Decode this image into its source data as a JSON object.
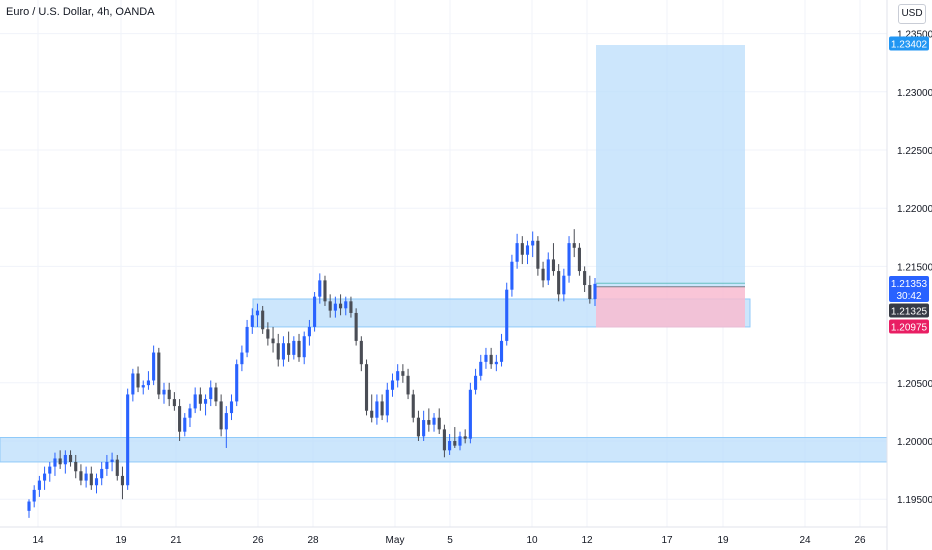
{
  "chart_data": {
    "type": "candlestick",
    "title": "Euro / U.S. Dollar, 4h, OANDA",
    "currency": "USD",
    "y_ticks": [
      "1.23500",
      "1.23000",
      "1.22500",
      "1.22000",
      "1.21500",
      "1.20500",
      "1.20000",
      "1.19500"
    ],
    "x_ticks": [
      "14",
      "19",
      "21",
      "26",
      "28",
      "May",
      "5",
      "10",
      "12",
      "17",
      "19",
      "24",
      "26"
    ],
    "price_labels": {
      "target": "1.23402",
      "current": "1.21353",
      "countdown": "30:42",
      "entry": "1.21325",
      "stop": "1.20975"
    },
    "colors": {
      "up": "#2962ff",
      "down": "#4a4d55",
      "zone": "#bbdefb",
      "zone_border": "#90caf9",
      "profit": "#bbdefb",
      "loss": "#f8bbd0",
      "target_label": "#2196f3",
      "current_label": "#2962ff",
      "entry_label": "#363a45",
      "stop_label": "#e91e63"
    },
    "zones": [
      {
        "from": 1.2098,
        "to": 1.2122
      },
      {
        "from": 1.1982,
        "to": 1.2003
      }
    ],
    "position": {
      "entry": 1.21325,
      "target": 1.23402,
      "stop": 1.20975
    },
    "candles": [
      [
        1.194,
        1.195,
        1.1934,
        1.1948
      ],
      [
        1.1948,
        1.1962,
        1.1943,
        1.1958
      ],
      [
        1.1958,
        1.197,
        1.1952,
        1.1966
      ],
      [
        1.1966,
        1.1978,
        1.1958,
        1.1972
      ],
      [
        1.1972,
        1.1982,
        1.1965,
        1.1978
      ],
      [
        1.1978,
        1.199,
        1.197,
        1.1985
      ],
      [
        1.1985,
        1.1992,
        1.1976,
        1.198
      ],
      [
        1.198,
        1.1992,
        1.1972,
        1.1988
      ],
      [
        1.1988,
        1.1992,
        1.1978,
        1.1982
      ],
      [
        1.1982,
        1.1988,
        1.1968,
        1.1974
      ],
      [
        1.1974,
        1.198,
        1.1962,
        1.1966
      ],
      [
        1.1966,
        1.1978,
        1.196,
        1.1972
      ],
      [
        1.1972,
        1.1978,
        1.1958,
        1.1962
      ],
      [
        1.1962,
        1.1972,
        1.1955,
        1.1968
      ],
      [
        1.1968,
        1.1982,
        1.1962,
        1.1976
      ],
      [
        1.1976,
        1.1988,
        1.197,
        1.1982
      ],
      [
        1.1982,
        1.199,
        1.1974,
        1.1984
      ],
      [
        1.1984,
        1.1988,
        1.1966,
        1.197
      ],
      [
        1.197,
        1.1978,
        1.195,
        1.1962
      ],
      [
        1.1962,
        1.2045,
        1.1958,
        1.204
      ],
      [
        1.204,
        1.2062,
        1.2034,
        1.2058
      ],
      [
        1.2058,
        1.2064,
        1.2042,
        1.2046
      ],
      [
        1.2046,
        1.2052,
        1.204,
        1.2048
      ],
      [
        1.2048,
        1.206,
        1.2044,
        1.2052
      ],
      [
        1.2052,
        1.2082,
        1.2048,
        1.2076
      ],
      [
        1.2076,
        1.208,
        1.2036,
        1.204
      ],
      [
        1.204,
        1.205,
        1.2032,
        1.2044
      ],
      [
        1.2044,
        1.205,
        1.203,
        1.2036
      ],
      [
        1.2036,
        1.2042,
        1.2026,
        1.203
      ],
      [
        1.203,
        1.2036,
        1.2,
        1.2008
      ],
      [
        1.2008,
        1.2024,
        1.2004,
        1.202
      ],
      [
        1.202,
        1.2032,
        1.2012,
        1.2028
      ],
      [
        1.2028,
        1.2046,
        1.2024,
        1.204
      ],
      [
        1.204,
        1.2046,
        1.2026,
        1.2032
      ],
      [
        1.2032,
        1.204,
        1.2022,
        1.2036
      ],
      [
        1.2036,
        1.2052,
        1.203,
        1.2046
      ],
      [
        1.2046,
        1.205,
        1.203,
        1.2034
      ],
      [
        1.2034,
        1.204,
        1.2004,
        1.201
      ],
      [
        1.201,
        1.203,
        1.1994,
        1.2024
      ],
      [
        1.2024,
        1.204,
        1.2018,
        1.2034
      ],
      [
        1.2034,
        1.207,
        1.203,
        1.2066
      ],
      [
        1.2066,
        1.2082,
        1.206,
        1.2076
      ],
      [
        1.2076,
        1.2104,
        1.2072,
        1.2098
      ],
      [
        1.2098,
        1.2114,
        1.2092,
        1.2108
      ],
      [
        1.2108,
        1.2118,
        1.2098,
        1.2112
      ],
      [
        1.2112,
        1.2116,
        1.2092,
        1.2096
      ],
      [
        1.2096,
        1.2102,
        1.2082,
        1.2088
      ],
      [
        1.2088,
        1.2098,
        1.2076,
        1.2084
      ],
      [
        1.2084,
        1.2092,
        1.2064,
        1.207
      ],
      [
        1.207,
        1.209,
        1.2064,
        1.2084
      ],
      [
        1.2084,
        1.2094,
        1.2068,
        1.2074
      ],
      [
        1.2074,
        1.209,
        1.207,
        1.2086
      ],
      [
        1.2086,
        1.2092,
        1.2068,
        1.2072
      ],
      [
        1.2072,
        1.2094,
        1.2066,
        1.209
      ],
      [
        1.209,
        1.2104,
        1.2082,
        1.2098
      ],
      [
        1.2098,
        1.2128,
        1.2094,
        1.2124
      ],
      [
        1.2124,
        1.2144,
        1.2118,
        1.2138
      ],
      [
        1.2138,
        1.2142,
        1.2116,
        1.212
      ],
      [
        1.212,
        1.2126,
        1.2106,
        1.2112
      ],
      [
        1.2112,
        1.2124,
        1.2106,
        1.2118
      ],
      [
        1.2118,
        1.2126,
        1.2108,
        1.2114
      ],
      [
        1.2114,
        1.2124,
        1.2108,
        1.212
      ],
      [
        1.212,
        1.2124,
        1.2106,
        1.211
      ],
      [
        1.211,
        1.2114,
        1.2082,
        1.2086
      ],
      [
        1.2086,
        1.209,
        1.206,
        1.2066
      ],
      [
        1.2066,
        1.207,
        1.2022,
        1.2026
      ],
      [
        1.2026,
        1.204,
        1.2016,
        1.202
      ],
      [
        1.202,
        1.204,
        1.2014,
        1.2034
      ],
      [
        1.2034,
        1.204,
        1.2018,
        1.2022
      ],
      [
        1.2022,
        1.205,
        1.2016,
        1.2044
      ],
      [
        1.2044,
        1.2058,
        1.2038,
        1.2052
      ],
      [
        1.2052,
        1.2066,
        1.2046,
        1.206
      ],
      [
        1.206,
        1.2066,
        1.205,
        1.2056
      ],
      [
        1.2056,
        1.2062,
        1.2036,
        1.204
      ],
      [
        1.204,
        1.2044,
        1.2016,
        1.202
      ],
      [
        1.202,
        1.2026,
        1.2,
        1.2004
      ],
      [
        1.2004,
        1.2026,
        1.2,
        1.2018
      ],
      [
        1.2018,
        1.2028,
        1.2008,
        1.2014
      ],
      [
        1.2014,
        1.2024,
        1.2008,
        1.202
      ],
      [
        1.202,
        1.2028,
        1.2006,
        1.201
      ],
      [
        1.201,
        1.2014,
        1.1986,
        1.1992
      ],
      [
        1.1992,
        1.2006,
        1.1988,
        1.2
      ],
      [
        1.2,
        1.2012,
        1.1994,
        1.1996
      ],
      [
        1.1996,
        1.2008,
        1.1992,
        1.2004
      ],
      [
        1.2004,
        1.201,
        1.1998,
        1.2002
      ],
      [
        1.2002,
        1.205,
        1.1998,
        1.2044
      ],
      [
        1.2044,
        1.2062,
        1.204,
        1.2056
      ],
      [
        1.2056,
        1.2074,
        1.2052,
        1.2068
      ],
      [
        1.2068,
        1.208,
        1.2062,
        1.2074
      ],
      [
        1.2074,
        1.208,
        1.2062,
        1.2066
      ],
      [
        1.2066,
        1.2074,
        1.206,
        1.2068
      ],
      [
        1.2068,
        1.2092,
        1.2064,
        1.2086
      ],
      [
        1.2086,
        1.2136,
        1.2082,
        1.213
      ],
      [
        1.213,
        1.216,
        1.2124,
        1.2154
      ],
      [
        1.2154,
        1.2178,
        1.2148,
        1.217
      ],
      [
        1.217,
        1.2176,
        1.2152,
        1.216
      ],
      [
        1.216,
        1.2172,
        1.2152,
        1.2168
      ],
      [
        1.2168,
        1.218,
        1.2158,
        1.2172
      ],
      [
        1.2172,
        1.2176,
        1.2142,
        1.2148
      ],
      [
        1.2148,
        1.2154,
        1.2132,
        1.2138
      ],
      [
        1.2138,
        1.2162,
        1.2134,
        1.2156
      ],
      [
        1.2156,
        1.217,
        1.2142,
        1.2146
      ],
      [
        1.2146,
        1.2152,
        1.212,
        1.2126
      ],
      [
        1.2126,
        1.2148,
        1.212,
        1.2142
      ],
      [
        1.2142,
        1.2176,
        1.2136,
        1.217
      ],
      [
        1.217,
        1.2182,
        1.2158,
        1.2166
      ],
      [
        1.2166,
        1.217,
        1.2142,
        1.2146
      ],
      [
        1.2146,
        1.215,
        1.2128,
        1.2134
      ],
      [
        1.2134,
        1.2142,
        1.2118,
        1.2122
      ],
      [
        1.2122,
        1.214,
        1.2116,
        1.2135
      ]
    ]
  }
}
